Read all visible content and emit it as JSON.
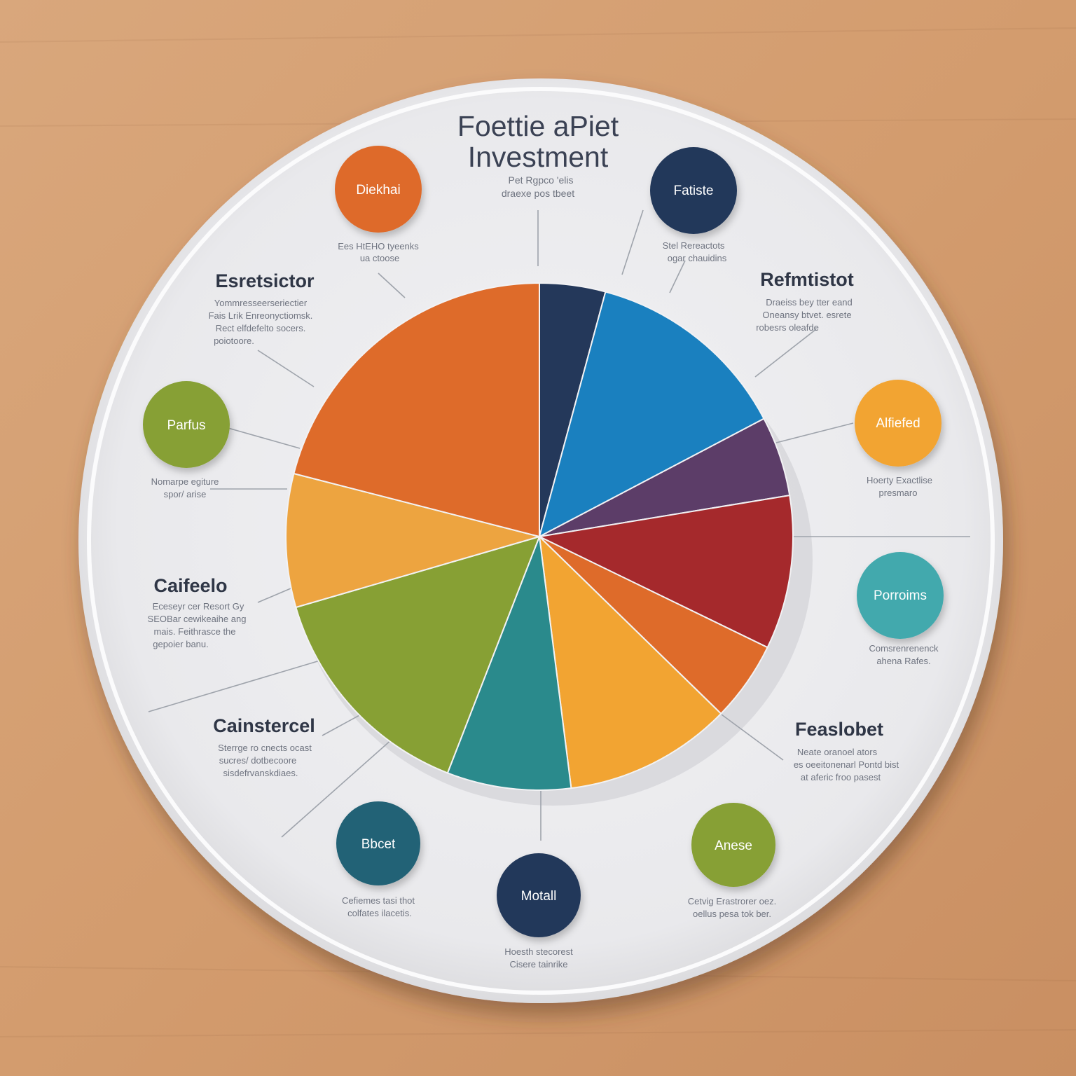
{
  "colors": {
    "plate": "#ececee",
    "plate_rim": "#f8f8f9",
    "title": "#3b4254",
    "note": "#6f7480",
    "heading": "#2f3646",
    "leader": "#9ea3ab"
  },
  "title": {
    "line1": "Foettie aPiet",
    "line2": "Investment",
    "sub1": "Pet Rgpco 'elis",
    "sub2": "draexe pos tbeet"
  },
  "chart_data": {
    "type": "pie",
    "title": "Foettie aPiet Investment",
    "slices": [
      {
        "value": 4.2,
        "color": "#24385a"
      },
      {
        "value": 13.1,
        "color": "#1a80bf"
      },
      {
        "value": 5.1,
        "color": "#5c3d68"
      },
      {
        "value": 9.8,
        "color": "#a5292c"
      },
      {
        "value": 5.1,
        "color": "#de6b2a"
      },
      {
        "value": 10.7,
        "color": "#f2a432"
      },
      {
        "value": 7.9,
        "color": "#2a8a8c"
      },
      {
        "value": 14.6,
        "color": "#87a034"
      },
      {
        "value": 8.5,
        "color": "#eda440"
      },
      {
        "value": 21.0,
        "color": "#de6b2a"
      }
    ],
    "start_angle_deg": 0,
    "direction": "clockwise-from-top"
  },
  "badges": [
    {
      "label": "Diekhai",
      "color": "#de6b2a",
      "note1": "Ees HtEHO tyeenks",
      "note2": "ua ctoose"
    },
    {
      "label": "Fatiste",
      "color": "#24385a",
      "note1": "Stel Rereactots",
      "note2": "ogar chauidins"
    },
    {
      "label": "Parfus",
      "color": "#87a034",
      "note1": "Nomarpe egiture",
      "note2": "spor/ arise"
    },
    {
      "label": "Alfiefed",
      "color": "#f2a432",
      "note1": "Hoerty Exactlise",
      "note2": "presmaro"
    },
    {
      "label": "Porroims",
      "color": "#43a9ad",
      "note1": "Comsrenrenenck",
      "note2": "ahena Rafes."
    },
    {
      "label": "Bbcet",
      "color": "#236276",
      "note1": "Cefiemes tasi thot",
      "note2": "colfates ilacetis."
    },
    {
      "label": "Motall",
      "color": "#24385a",
      "note1": "Hoesth stecorest",
      "note2": "Cisere tainrike"
    },
    {
      "label": "Anese",
      "color": "#87a034",
      "note1": "Cetvig Erastrorer oez.",
      "note2": "oellus pesa tok ber."
    }
  ],
  "sections": [
    {
      "heading": "Esretsictor",
      "lines": [
        "Yommresseerseriectier",
        "Fais Lrik Enreonyctiomsk.",
        "Rect elfdefelto socers.",
        "poiotoore."
      ]
    },
    {
      "heading": "Refmtistot",
      "lines": [
        "Draeiss bey tter eand",
        "Oneansy btvet. esrete",
        "robesrs oleafde"
      ]
    },
    {
      "heading": "Caifeelo",
      "lines": [
        "Eceseyr cer Resort Gy",
        "SEOBar cewikeaihe ang",
        "mais. Feithrasce the",
        "gepoier banu."
      ]
    },
    {
      "heading": "Cainstercel",
      "lines": [
        "Sterrge ro cnects ocast",
        "sucres/ dotbecoore",
        "sisdefrvanskdiaes."
      ]
    },
    {
      "heading": "Feaslobet",
      "lines": [
        "Neate oranoel ators",
        "es oeeitonenarl Pontd bist",
        "at aferic froo pasest"
      ]
    }
  ]
}
